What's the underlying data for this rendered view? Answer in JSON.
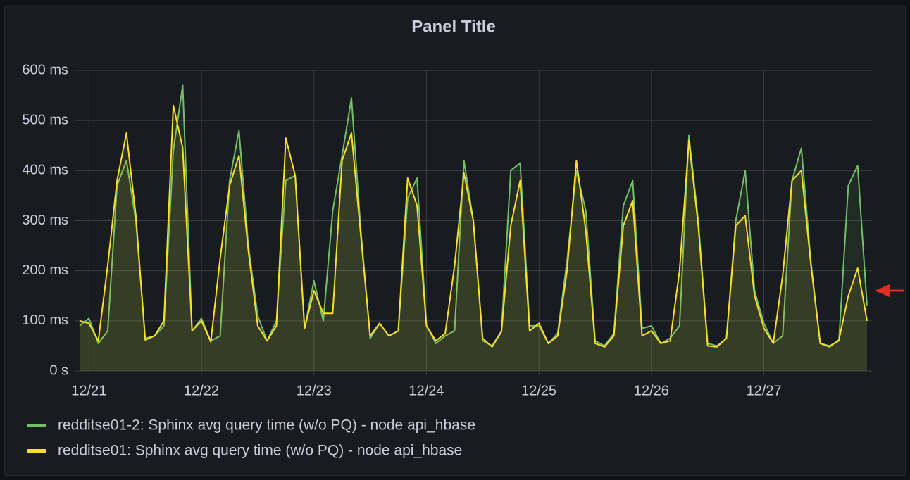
{
  "chart_data": {
    "type": "line",
    "title": "Panel Title",
    "categories": [
      null,
      "12/21",
      null,
      null,
      null,
      null,
      null,
      null,
      null,
      null,
      null,
      null,
      null,
      "12/22",
      null,
      null,
      null,
      null,
      null,
      null,
      null,
      null,
      null,
      null,
      null,
      "12/23",
      null,
      null,
      null,
      null,
      null,
      null,
      null,
      null,
      null,
      null,
      null,
      "12/24",
      null,
      null,
      null,
      null,
      null,
      null,
      null,
      null,
      null,
      null,
      null,
      "12/25",
      null,
      null,
      null,
      null,
      null,
      null,
      null,
      null,
      null,
      null,
      null,
      "12/26",
      null,
      null,
      null,
      null,
      null,
      null,
      null,
      null,
      null,
      null,
      null,
      "12/27",
      null,
      null,
      null,
      null,
      null,
      null,
      null,
      null,
      null,
      null,
      null
    ],
    "series": [
      {
        "name": "redditse01-2: Sphinx avg query time (w/o PQ) - node api_hbase",
        "color": "#73bf69",
        "values": [
          90,
          105,
          55,
          80,
          370,
          420,
          300,
          65,
          70,
          90,
          440,
          570,
          80,
          105,
          60,
          70,
          380,
          480,
          250,
          110,
          60,
          100,
          380,
          390,
          85,
          180,
          100,
          320,
          430,
          545,
          280,
          65,
          95,
          70,
          80,
          345,
          385,
          90,
          55,
          70,
          80,
          420,
          300,
          60,
          50,
          80,
          400,
          415,
          90,
          90,
          55,
          75,
          220,
          400,
          320,
          60,
          50,
          75,
          330,
          380,
          85,
          90,
          55,
          65,
          90,
          470,
          300,
          55,
          50,
          65,
          300,
          400,
          160,
          95,
          55,
          70,
          380,
          445,
          220,
          55,
          50,
          60,
          370,
          410,
          130
        ]
      },
      {
        "name": "redditse01: Sphinx avg query time (w/o PQ) - node api_hbase",
        "color": "#fade2a",
        "values": [
          100,
          95,
          60,
          210,
          380,
          475,
          310,
          62,
          70,
          100,
          530,
          445,
          80,
          100,
          58,
          225,
          370,
          430,
          240,
          90,
          60,
          90,
          465,
          390,
          85,
          160,
          115,
          115,
          420,
          475,
          270,
          70,
          95,
          70,
          80,
          385,
          330,
          90,
          60,
          75,
          210,
          395,
          300,
          65,
          48,
          78,
          290,
          380,
          80,
          95,
          55,
          70,
          200,
          420,
          280,
          55,
          48,
          70,
          290,
          340,
          70,
          80,
          55,
          60,
          200,
          460,
          290,
          50,
          48,
          65,
          290,
          310,
          150,
          85,
          55,
          190,
          380,
          400,
          215,
          55,
          48,
          62,
          150,
          205,
          100
        ]
      }
    ],
    "ylim": [
      0,
      600
    ],
    "yticks": [
      {
        "value": 0,
        "label": "0 s"
      },
      {
        "value": 100,
        "label": "100 ms"
      },
      {
        "value": 200,
        "label": "200 ms"
      },
      {
        "value": 300,
        "label": "300 ms"
      },
      {
        "value": 400,
        "label": "400 ms"
      },
      {
        "value": 500,
        "label": "500 ms"
      },
      {
        "value": 600,
        "label": "600 ms"
      }
    ],
    "grid": true,
    "fill": true,
    "legend": "bottom"
  }
}
